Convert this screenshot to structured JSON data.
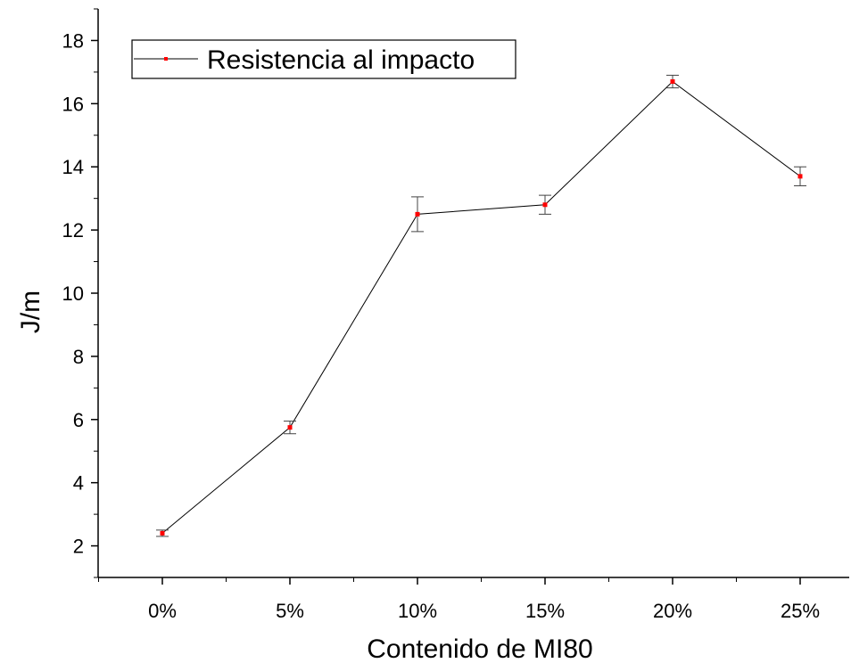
{
  "chart_data": {
    "type": "line",
    "xlabel": "Contenido de MI80",
    "ylabel": "J/m",
    "categories": [
      "0%",
      "5%",
      "10%",
      "15%",
      "20%",
      "25%"
    ],
    "series": [
      {
        "name": "Resistencia al impacto",
        "values": [
          2.4,
          5.75,
          12.5,
          12.8,
          16.7,
          13.7
        ],
        "errors": [
          0.1,
          0.2,
          0.55,
          0.3,
          0.2,
          0.3
        ],
        "line_color": "#000000",
        "marker_color": "#ff0000"
      }
    ],
    "ylim": [
      1,
      19
    ],
    "yticks": [
      2,
      4,
      6,
      8,
      10,
      12,
      14,
      16,
      18
    ],
    "grid": false,
    "legend_position": "top-left"
  }
}
